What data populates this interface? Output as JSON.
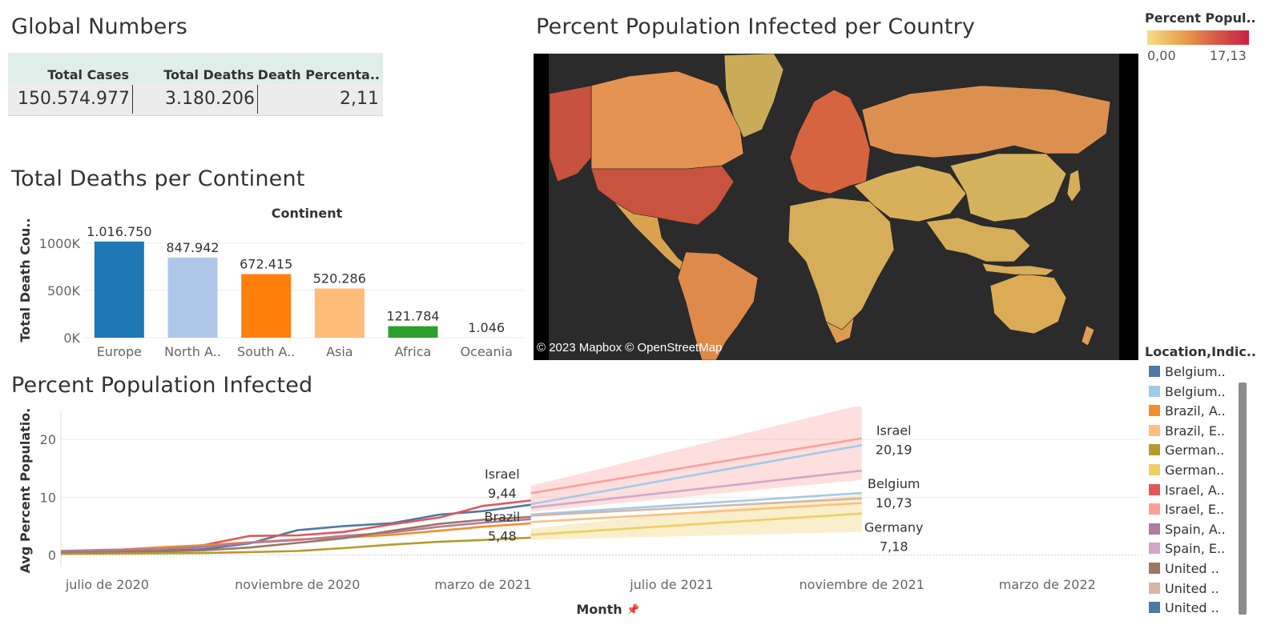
{
  "titles": {
    "global_numbers": "Global Numbers",
    "deaths_per_continent": "Total Deaths per Continent",
    "infected_map": "Percent Population Infected per Country",
    "infected_line": "Percent Population Infected"
  },
  "global_numbers": {
    "headers": [
      "Total Cases",
      "Total Deaths",
      "Death Percenta.."
    ],
    "values": [
      "150.574.977",
      "3.180.206",
      "2,11"
    ]
  },
  "map": {
    "credit": "© 2023 Mapbox © OpenStreetMap",
    "colors": {
      "background": "#2b2b2b",
      "low": "#f5dd86",
      "high": "#c81f45"
    }
  },
  "color_legend": {
    "title": "Percent Popul..",
    "min_label": "0,00",
    "max_label": "17,13"
  },
  "series_legend": {
    "title": "Location,Indic..",
    "items": [
      {
        "label": "Belgium..",
        "color": "#4e79a7"
      },
      {
        "label": "Belgium..",
        "color": "#a0cbe8"
      },
      {
        "label": "Brazil, A..",
        "color": "#f28e2b"
      },
      {
        "label": "Brazil, E..",
        "color": "#ffbe7d"
      },
      {
        "label": "German..",
        "color": "#b69a2b"
      },
      {
        "label": "German..",
        "color": "#f1ce63"
      },
      {
        "label": "Israel, A..",
        "color": "#e15759"
      },
      {
        "label": "Israel, E..",
        "color": "#ff9d9a"
      },
      {
        "label": "Spain, A..",
        "color": "#b07aa1"
      },
      {
        "label": "Spain, E..",
        "color": "#d4a6c8"
      },
      {
        "label": "United ..",
        "color": "#9d7660"
      },
      {
        "label": "United ..",
        "color": "#d7b5a6"
      },
      {
        "label": "United ..",
        "color": "#4e79a7"
      }
    ]
  },
  "chart_data": [
    {
      "type": "bar",
      "title": "Total Deaths per Continent",
      "header": "Continent",
      "ylabel": "Total Death Cou..",
      "ylim": [
        0,
        1100000
      ],
      "yticks": [
        0,
        500000,
        1000000
      ],
      "ytick_labels": [
        "0K",
        "500K",
        "1000K"
      ],
      "categories": [
        "Europe",
        "North A..",
        "South A..",
        "Asia",
        "Africa",
        "Oceania"
      ],
      "values": [
        1016750,
        847942,
        672415,
        520286,
        121784,
        1046
      ],
      "value_labels": [
        "1.016.750",
        "847.942",
        "672.415",
        "520.286",
        "121.784",
        "1.046"
      ],
      "colors": [
        "#1f77b4",
        "#aec7e8",
        "#ff7f0e",
        "#ffbb78",
        "#2ca02c",
        "#98df8a"
      ],
      "grid": true,
      "legend": "none"
    },
    {
      "type": "line",
      "title": "Percent Population Infected",
      "xlabel": "Month",
      "ylabel": "Avg Percent Populatio..",
      "ylim": [
        -2,
        25
      ],
      "yticks": [
        0,
        10,
        20
      ],
      "xticks": [
        "2020-07",
        "2020-11",
        "2021-03",
        "2021-07",
        "2021-11",
        "2022-03"
      ],
      "xtick_labels": [
        "julio de 2020",
        "noviembre de 2020",
        "marzo de 2021",
        "julio de 2021",
        "noviembre de 2021",
        "marzo de 2022"
      ],
      "grid": true,
      "legend": "right",
      "series": [
        {
          "color": "#4e79a7",
          "x": [
            "2020-06",
            "2020-07",
            "2020-08",
            "2020-09",
            "2020-10",
            "2020-11",
            "2020-12",
            "2021-01",
            "2021-02",
            "2021-03",
            "2021-04"
          ],
          "y": [
            0.5,
            0.6,
            0.7,
            1.0,
            2.0,
            4.3,
            5.0,
            5.5,
            7.0,
            7.6,
            8.7
          ]
        },
        {
          "color": "#e15759",
          "x": [
            "2020-06",
            "2020-07",
            "2020-08",
            "2020-09",
            "2020-10",
            "2020-11",
            "2020-12",
            "2021-01",
            "2021-02",
            "2021-03",
            "2021-04"
          ],
          "y": [
            0.6,
            0.8,
            1.0,
            1.7,
            3.3,
            3.4,
            4.0,
            5.3,
            6.5,
            8.5,
            9.44
          ]
        },
        {
          "color": "#f28e2b",
          "x": [
            "2020-06",
            "2020-07",
            "2020-08",
            "2020-09",
            "2020-10",
            "2020-11",
            "2020-12",
            "2021-01",
            "2021-02",
            "2021-03",
            "2021-04"
          ],
          "y": [
            0.4,
            0.8,
            1.3,
            1.7,
            2.2,
            2.7,
            3.0,
            3.5,
            4.2,
            4.9,
            5.48
          ]
        },
        {
          "color": "#b07aa1",
          "x": [
            "2020-06",
            "2020-07",
            "2020-08",
            "2020-09",
            "2020-10",
            "2020-11",
            "2020-12",
            "2021-01",
            "2021-02",
            "2021-03",
            "2021-04"
          ],
          "y": [
            0.7,
            0.9,
            1.0,
            1.4,
            2.1,
            2.6,
            3.3,
            3.9,
            4.9,
            5.6,
            6.2
          ]
        },
        {
          "color": "#9d7660",
          "x": [
            "2020-06",
            "2020-07",
            "2020-08",
            "2020-09",
            "2020-10",
            "2020-11",
            "2020-12",
            "2021-01",
            "2021-02",
            "2021-03",
            "2021-04"
          ],
          "y": [
            0.4,
            0.5,
            0.6,
            0.8,
            1.3,
            2.1,
            2.9,
            4.2,
            5.4,
            6.1,
            6.6
          ]
        },
        {
          "color": "#b69a2b",
          "x": [
            "2020-06",
            "2020-07",
            "2020-08",
            "2020-09",
            "2020-10",
            "2020-11",
            "2020-12",
            "2021-01",
            "2021-02",
            "2021-03",
            "2021-04"
          ],
          "y": [
            0.2,
            0.25,
            0.3,
            0.35,
            0.5,
            0.7,
            1.2,
            1.8,
            2.3,
            2.6,
            3.0
          ]
        },
        {
          "color": "#ff9d9a",
          "band": true,
          "x": [
            "2021-04",
            "2021-11"
          ],
          "y": [
            10.7,
            20.19
          ],
          "band_upper": [
            12.0,
            26.0
          ],
          "band_lower": [
            7.5,
            13.0
          ]
        },
        {
          "color": "#a0cbe8",
          "x": [
            "2021-04",
            "2021-11"
          ],
          "y": [
            8.8,
            19.0
          ]
        },
        {
          "color": "#d4a6c8",
          "x": [
            "2021-04",
            "2021-11"
          ],
          "y": [
            8.2,
            14.6
          ]
        },
        {
          "color": "#a0cbe8",
          "x": [
            "2021-04",
            "2021-11"
          ],
          "y": [
            7.0,
            10.73
          ]
        },
        {
          "color": "#d7b5a6",
          "x": [
            "2021-04",
            "2021-11"
          ],
          "y": [
            6.8,
            9.8
          ]
        },
        {
          "color": "#ffbe7d",
          "x": [
            "2021-04",
            "2021-11"
          ],
          "y": [
            5.7,
            9.0
          ]
        },
        {
          "color": "#f1ce63",
          "band": true,
          "x": [
            "2021-04",
            "2021-11"
          ],
          "y": [
            3.5,
            7.18
          ],
          "band_upper": [
            4.6,
            10.5
          ],
          "band_lower": [
            2.6,
            4.0
          ]
        }
      ],
      "annotations": [
        {
          "name": "Israel",
          "value": "9,44",
          "x": "2021-03",
          "y": 13.2
        },
        {
          "name": "Brazil",
          "value": "5,48",
          "x": "2021-03",
          "y": 5.8
        },
        {
          "name": "Israel",
          "value": "20,19",
          "x": "2021-11",
          "y": 20.8
        },
        {
          "name": "Belgium",
          "value": "10,73",
          "x": "2021-11",
          "y": 11.6
        },
        {
          "name": "Germany",
          "value": "7,18",
          "x": "2021-11",
          "y": 4.0
        }
      ]
    }
  ]
}
